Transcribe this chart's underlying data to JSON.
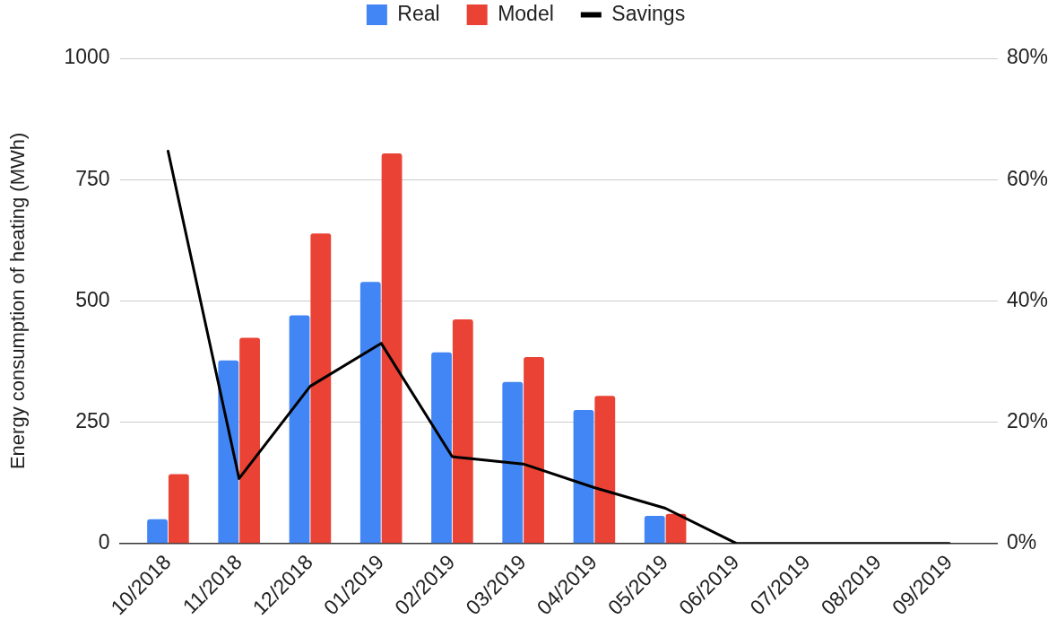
{
  "chart_data": {
    "type": "bar",
    "categories": [
      "10/2018",
      "11/2018",
      "12/2018",
      "01/2019",
      "02/2019",
      "03/2019",
      "04/2019",
      "05/2019",
      "06/2019",
      "07/2019",
      "08/2019",
      "09/2019"
    ],
    "series": [
      {
        "name": "Real",
        "color": "#4285f4",
        "values": [
          50,
          377,
          470,
          539,
          394,
          333,
          275,
          57,
          null,
          null,
          null,
          null
        ]
      },
      {
        "name": "Model",
        "color": "#ea4335",
        "values": [
          143,
          424,
          639,
          804,
          462,
          384,
          304,
          61,
          null,
          null,
          null,
          null
        ]
      },
      {
        "name": "Savings",
        "type": "line",
        "axis": "y2",
        "color": "#000000",
        "values": [
          64.7,
          10.7,
          25.9,
          33.0,
          14.3,
          13.1,
          9.2,
          5.8,
          0,
          0,
          0,
          0
        ]
      }
    ],
    "ylabel": "Energy consumption of heating (MWh)",
    "ylim": [
      0,
      1000
    ],
    "yticks": [
      0,
      250,
      500,
      750,
      1000
    ],
    "y2lim": [
      0,
      80
    ],
    "y2ticks": [
      {
        "value": 0,
        "label": "0%"
      },
      {
        "value": 20,
        "label": "20%"
      },
      {
        "value": 40,
        "label": "40%"
      },
      {
        "value": 60,
        "label": "60%"
      },
      {
        "value": 80,
        "label": "80%"
      }
    ],
    "grid": "y",
    "legend": "top"
  }
}
